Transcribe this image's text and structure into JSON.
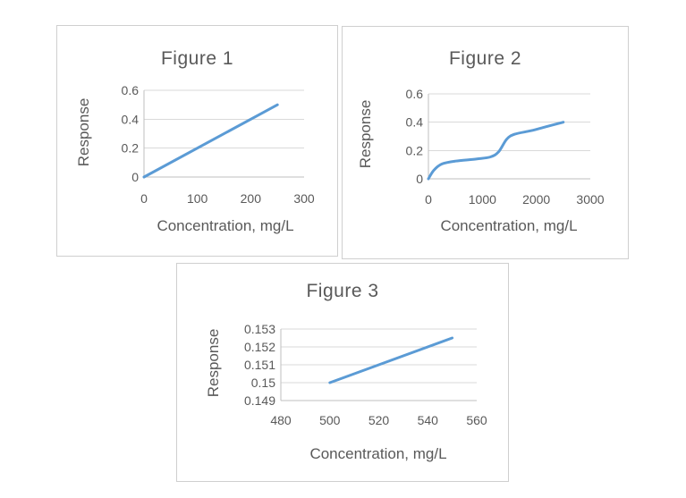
{
  "colors": {
    "line": "#5B9BD5",
    "grid": "#D9D9D9",
    "axis": "#BFBFBF",
    "text": "#595959",
    "panel_border": "#CFCFCF",
    "background": "#FFFFFF"
  },
  "chart_data": [
    {
      "id": "figure-1",
      "type": "line",
      "title": "Figure 1",
      "xlabel": "Concentration, mg/L",
      "ylabel": "Response",
      "xlim": [
        0,
        300
      ],
      "ylim": [
        0,
        0.6
      ],
      "xticks": [
        0,
        100,
        200,
        300
      ],
      "xtick_labels": [
        "0",
        "100",
        "200",
        "300"
      ],
      "yticks": [
        0,
        0.2,
        0.4,
        0.6
      ],
      "ytick_labels": [
        "0",
        "0.2",
        "0.4",
        "0.6"
      ],
      "grid": true,
      "legend": false,
      "smooth": false,
      "series": [
        {
          "name": "Response",
          "x": [
            0,
            250
          ],
          "y": [
            0,
            0.5
          ]
        }
      ]
    },
    {
      "id": "figure-2",
      "type": "line",
      "title": "Figure 2",
      "xlabel": "Concentration, mg/L",
      "ylabel": "Response",
      "xlim": [
        0,
        3000
      ],
      "ylim": [
        0,
        0.6
      ],
      "xticks": [
        0,
        1000,
        2000,
        3000
      ],
      "xtick_labels": [
        "0",
        "1000",
        "2000",
        "3000"
      ],
      "yticks": [
        0,
        0.2,
        0.4,
        0.6
      ],
      "ytick_labels": [
        "0",
        "0.2",
        "0.4",
        "0.6"
      ],
      "grid": true,
      "legend": false,
      "smooth": true,
      "series": [
        {
          "name": "Response",
          "x": [
            0,
            100,
            250,
            500,
            900,
            1150,
            1300,
            1450,
            1600,
            1900,
            2200,
            2500
          ],
          "y": [
            0,
            0.06,
            0.105,
            0.125,
            0.14,
            0.155,
            0.19,
            0.28,
            0.315,
            0.34,
            0.37,
            0.4
          ]
        }
      ]
    },
    {
      "id": "figure-3",
      "type": "line",
      "title": "Figure 3",
      "xlabel": "Concentration, mg/L",
      "ylabel": "Response",
      "xlim": [
        480,
        560
      ],
      "ylim": [
        0.149,
        0.153
      ],
      "xticks": [
        480,
        500,
        520,
        540,
        560
      ],
      "xtick_labels": [
        "480",
        "500",
        "520",
        "540",
        "560"
      ],
      "yticks": [
        0.149,
        0.15,
        0.151,
        0.152,
        0.153
      ],
      "ytick_labels": [
        "0.149",
        "0.15",
        "0.151",
        "0.152",
        "0.153"
      ],
      "grid": true,
      "legend": false,
      "smooth": false,
      "series": [
        {
          "name": "Response",
          "x": [
            500,
            550
          ],
          "y": [
            0.15,
            0.1525
          ]
        }
      ]
    }
  ]
}
